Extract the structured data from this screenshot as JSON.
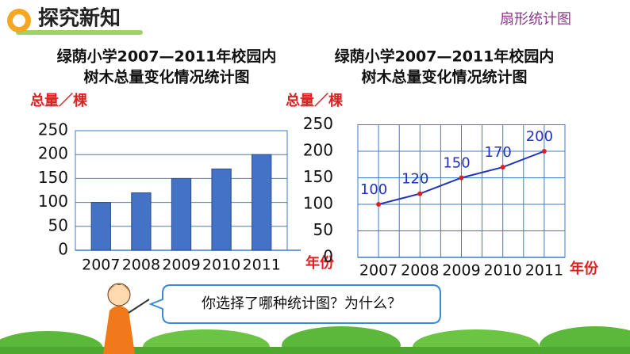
{
  "header": {
    "title": "探究新知",
    "link": "扇形统计图"
  },
  "chart_data": [
    {
      "type": "bar",
      "title": [
        "绿荫小学2007—2011年校园内",
        "树木总量变化情况统计图"
      ],
      "y_label": "总量／棵",
      "x_label": "年份",
      "categories": [
        "2007",
        "2008",
        "2009",
        "2010",
        "2011"
      ],
      "values": [
        100,
        120,
        150,
        170,
        200
      ],
      "color": "#4472c4",
      "ylim": [
        0,
        250
      ],
      "yticks": [
        0,
        50,
        100,
        150,
        200,
        250
      ],
      "grid": true
    },
    {
      "type": "line",
      "title": [
        "绿荫小学2007—2011年校园内",
        "树木总量变化情况统计图"
      ],
      "y_label": "总量／棵",
      "x_label": "年份",
      "categories": [
        "2007",
        "2008",
        "2009",
        "2010",
        "2011"
      ],
      "values": [
        100,
        120,
        150,
        170,
        200
      ],
      "color": "#2233bb",
      "marker_color": "#e02020",
      "ylim": [
        0,
        250
      ],
      "yticks": [
        0,
        50,
        100,
        150,
        200,
        250
      ],
      "grid": true
    }
  ],
  "bubble": {
    "text": "你选择了哪种统计图？为什么？"
  }
}
